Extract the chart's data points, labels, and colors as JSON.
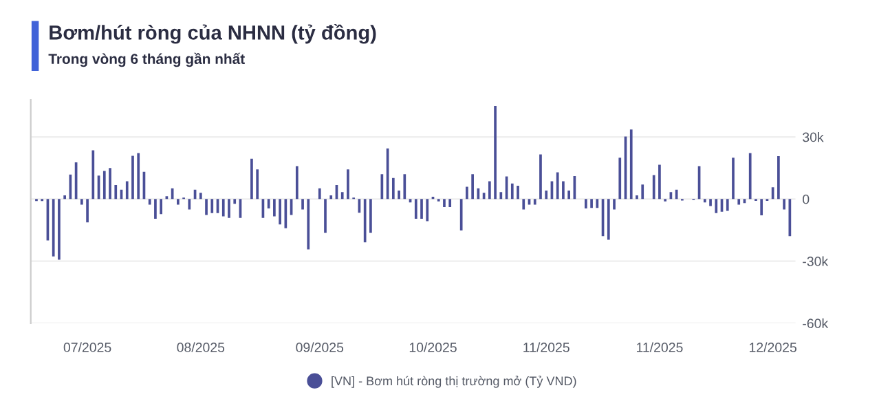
{
  "chart_data": {
    "type": "bar",
    "title": "Bơm/hút ròng của NHNN (tỷ đồng)",
    "subtitle": "Trong vòng 6 tháng gần nhất",
    "categories": [
      null,
      null,
      null,
      null,
      null,
      null,
      null,
      null,
      null,
      "07/2025",
      null,
      null,
      null,
      null,
      null,
      null,
      null,
      null,
      null,
      null,
      null,
      null,
      null,
      null,
      null,
      null,
      null,
      null,
      null,
      "08/2025",
      null,
      null,
      null,
      null,
      null,
      null,
      null,
      null,
      null,
      null,
      null,
      null,
      null,
      null,
      null,
      null,
      null,
      null,
      null,
      null,
      "09/2025",
      null,
      null,
      null,
      null,
      null,
      null,
      null,
      null,
      null,
      null,
      null,
      null,
      null,
      null,
      null,
      null,
      null,
      null,
      null,
      "10/2025",
      null,
      null,
      null,
      null,
      null,
      null,
      null,
      null,
      null,
      null,
      null,
      null,
      null,
      null,
      null,
      null,
      null,
      null,
      null,
      "11/2025",
      null,
      null,
      null,
      null,
      null,
      null,
      null,
      null,
      null,
      null,
      null,
      null,
      null,
      null,
      null,
      null,
      null,
      null,
      null,
      "11/2025",
      null,
      null,
      null,
      null,
      null,
      null,
      null,
      null,
      null,
      null,
      null,
      null,
      null,
      null,
      null,
      null,
      null,
      null,
      null,
      "12/2025",
      null,
      null,
      null
    ],
    "series": [
      {
        "name": "[VN] - Bơm hút ròng thị trường mở (Tỷ VND)",
        "color": "#4a4f97",
        "values": [
          -1000,
          -1000,
          -20000,
          -27700,
          -29300,
          1800,
          11800,
          17700,
          -2700,
          -11300,
          23600,
          11300,
          13600,
          15000,
          6800,
          4500,
          8600,
          20900,
          22200,
          13200,
          -2700,
          -9500,
          -7300,
          1400,
          5200,
          -2700,
          700,
          -5000,
          4500,
          3000,
          -7700,
          -6800,
          -6800,
          -8400,
          -9100,
          -2300,
          -9100,
          0,
          19500,
          14300,
          -9100,
          -4500,
          -8400,
          -12300,
          -14100,
          -7700,
          15900,
          -5000,
          -24300,
          0,
          5200,
          -16300,
          1800,
          6800,
          3400,
          14300,
          700,
          -6600,
          -20900,
          -16300,
          0,
          12000,
          24500,
          10200,
          4100,
          12000,
          -1600,
          -9500,
          -9500,
          -10700,
          1100,
          -1100,
          -3900,
          -3900,
          0,
          -15200,
          5900,
          12000,
          5200,
          3000,
          8600,
          45000,
          3400,
          10900,
          7500,
          6400,
          -5000,
          -2700,
          -2700,
          21600,
          4100,
          8600,
          12900,
          8600,
          4100,
          11100,
          0,
          -4500,
          -4300,
          -4300,
          -17900,
          -19700,
          -5000,
          20000,
          30200,
          33600,
          1800,
          7000,
          0,
          11600,
          16600,
          -1100,
          3400,
          4500,
          -700,
          0,
          -500,
          15900,
          -1600,
          -3400,
          -6800,
          -6100,
          -5700,
          20000,
          -2700,
          -2000,
          22200,
          -900,
          -7900,
          -900,
          5700,
          20700,
          -5000,
          -17900
        ]
      }
    ],
    "ylim": [
      -60000,
      48000
    ],
    "yticks": [
      {
        "value": 30000,
        "label": "30k"
      },
      0,
      {
        "value": -30000,
        "label": "-30k"
      },
      {
        "value": -60000,
        "label": "-60k"
      }
    ],
    "grid": "y",
    "legend": "bottom"
  }
}
